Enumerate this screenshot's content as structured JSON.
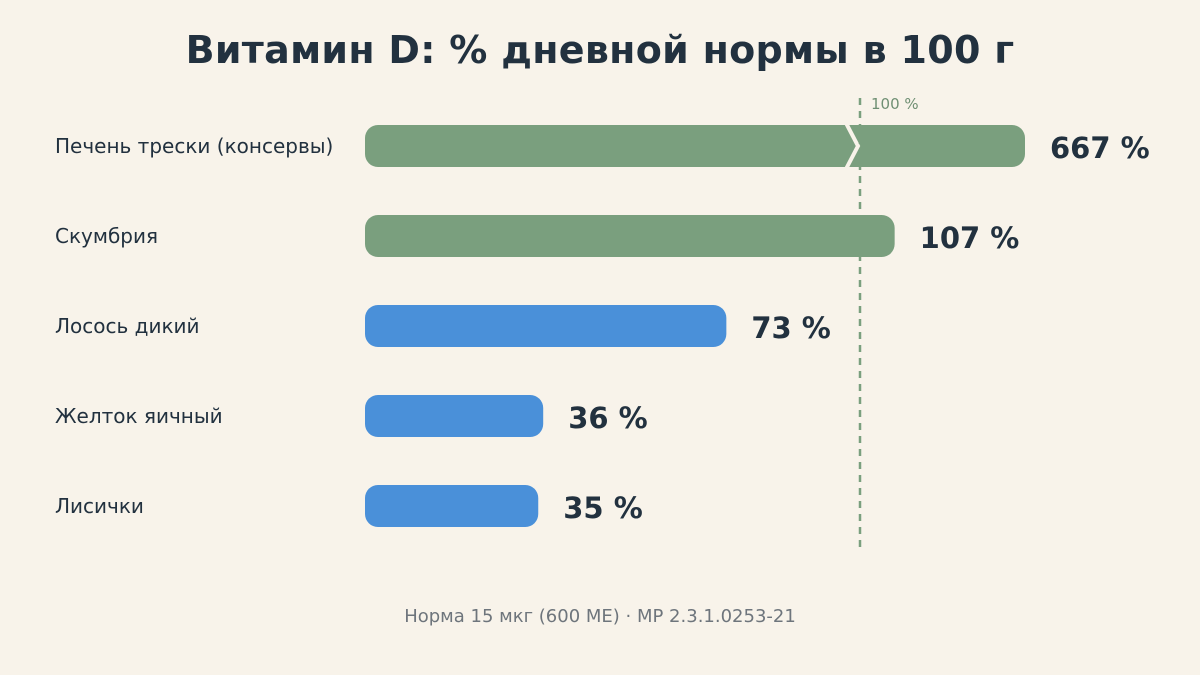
{
  "chart_data": {
    "type": "bar",
    "orientation": "horizontal",
    "title": "Витамин D: % дневной нормы в 100 г",
    "categories": [
      "Печень трески (консервы)",
      "Скумбрия",
      "Лосось дикий",
      "Желток яичный",
      "Лисички"
    ],
    "values": [
      667,
      107,
      73,
      36,
      35
    ],
    "value_labels": [
      "667 %",
      "107 %",
      "73 %",
      "36 %",
      "35 %"
    ],
    "reference_line": {
      "value": 100,
      "label": "100 %"
    },
    "axis_break": {
      "category_index": 0
    },
    "colors": {
      "at_or_above_norm": "#7a9f7e",
      "below_norm": "#4a90d9",
      "reference": "#7a9f7e"
    },
    "grid": false,
    "legend": "none",
    "footnote": "Норма 15 мкг (600 МЕ) · МР 2.3.1.0253-21"
  }
}
